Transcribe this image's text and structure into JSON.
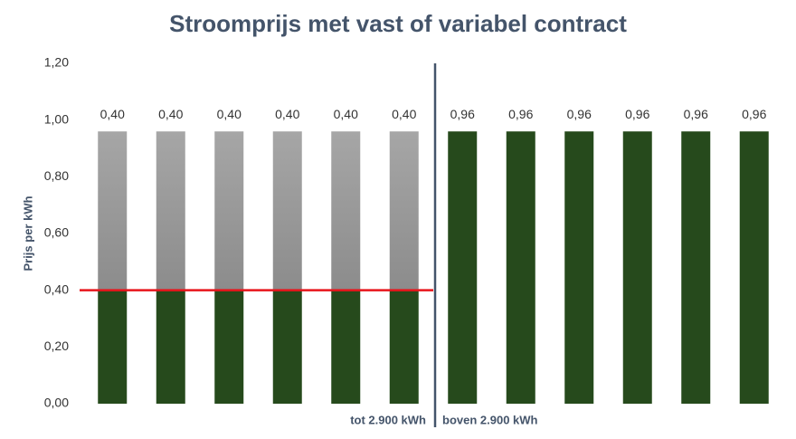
{
  "chart_data": {
    "type": "bar",
    "stacked": true,
    "title": "Stroomprijs met vast of variabel contract",
    "y_label": "Prijs per kWh",
    "categories": [
      null,
      null,
      null,
      null,
      null,
      null,
      null,
      null,
      null,
      null,
      null,
      null
    ],
    "series": [
      {
        "color": "#264a1c",
        "values": [
          0.4,
          0.4,
          0.4,
          0.4,
          0.4,
          0.4,
          0.96,
          0.96,
          0.96,
          0.96,
          0.96,
          0.96
        ],
        "value_labels": [
          "0,40",
          "0,40",
          "0,40",
          "0,40",
          "0,40",
          "0,40",
          "0,96",
          "0,96",
          "0,96",
          "0,96",
          "0,96",
          "0,96"
        ]
      },
      {
        "gradient": [
          "#a6a6a6",
          "#8c8c8c"
        ],
        "values": [
          0.56,
          0.56,
          0.56,
          0.56,
          0.56,
          0.56,
          null,
          null,
          null,
          null,
          null,
          null
        ]
      }
    ],
    "groups": [
      {
        "label": "tot 2.900 kWh",
        "size": 6
      },
      {
        "label": "boven 2.900 kWh",
        "size": 6
      }
    ],
    "reference_line": {
      "value": 0.4,
      "color": "#e8141b"
    },
    "divider_color": "#44546a",
    "ylim": [
      0,
      1.2
    ],
    "yticks": [
      {
        "value": 0,
        "label": "0,00"
      },
      {
        "value": 0.2,
        "label": "0,20"
      },
      {
        "value": 0.4,
        "label": "0,40"
      },
      {
        "value": 0.6,
        "label": "0,60"
      },
      {
        "value": 0.8,
        "label": "0,80"
      },
      {
        "value": 1.0,
        "label": "1,00"
      },
      {
        "value": 1.2,
        "label": "1,20"
      }
    ]
  }
}
